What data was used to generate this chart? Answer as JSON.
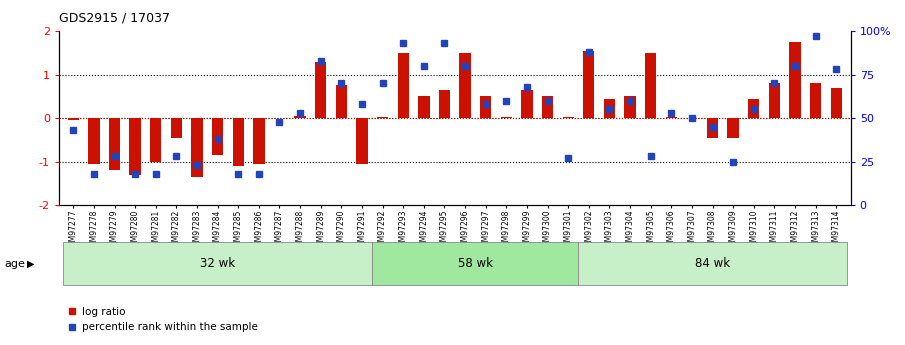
{
  "title": "GDS2915 / 17037",
  "samples": [
    "GSM97277",
    "GSM97278",
    "GSM97279",
    "GSM97280",
    "GSM97281",
    "GSM97282",
    "GSM97283",
    "GSM97284",
    "GSM97285",
    "GSM97286",
    "GSM97287",
    "GSM97288",
    "GSM97289",
    "GSM97290",
    "GSM97291",
    "GSM97292",
    "GSM97293",
    "GSM97294",
    "GSM97295",
    "GSM97296",
    "GSM97297",
    "GSM97298",
    "GSM97299",
    "GSM97300",
    "GSM97301",
    "GSM97302",
    "GSM97303",
    "GSM97304",
    "GSM97305",
    "GSM97306",
    "GSM97307",
    "GSM97308",
    "GSM97309",
    "GSM97310",
    "GSM97311",
    "GSM97312",
    "GSM97313",
    "GSM97314"
  ],
  "log_ratio": [
    -0.05,
    -1.05,
    -1.2,
    -1.3,
    -1.0,
    -0.45,
    -1.35,
    -0.85,
    -1.1,
    -1.05,
    0.0,
    0.05,
    1.3,
    0.75,
    -1.05,
    0.02,
    1.5,
    0.5,
    0.65,
    1.5,
    0.5,
    0.02,
    0.65,
    0.5,
    0.02,
    1.55,
    0.45,
    0.5,
    1.5,
    0.02,
    0.0,
    -0.45,
    -0.45,
    0.45,
    0.8,
    1.75,
    0.8,
    0.7
  ],
  "percentile": [
    43,
    18,
    28,
    18,
    18,
    28,
    23,
    38,
    18,
    18,
    48,
    53,
    83,
    70,
    58,
    70,
    93,
    80,
    93,
    80,
    58,
    60,
    68,
    60,
    27,
    88,
    55,
    60,
    28,
    53,
    50,
    45,
    25,
    55,
    70,
    80,
    97,
    78
  ],
  "groups": [
    {
      "label": "32 wk",
      "start": 0,
      "end": 15
    },
    {
      "label": "58 wk",
      "start": 15,
      "end": 25
    },
    {
      "label": "84 wk",
      "start": 25,
      "end": 38
    }
  ],
  "bar_color": "#cc1100",
  "dot_color": "#2244bb",
  "ylim": [
    -2,
    2
  ],
  "y2lim": [
    0,
    100
  ],
  "title_fontsize": 9,
  "group_color_light": "#c8f0c8",
  "group_color_mid": "#a0e8a0",
  "group_border": "#888888"
}
